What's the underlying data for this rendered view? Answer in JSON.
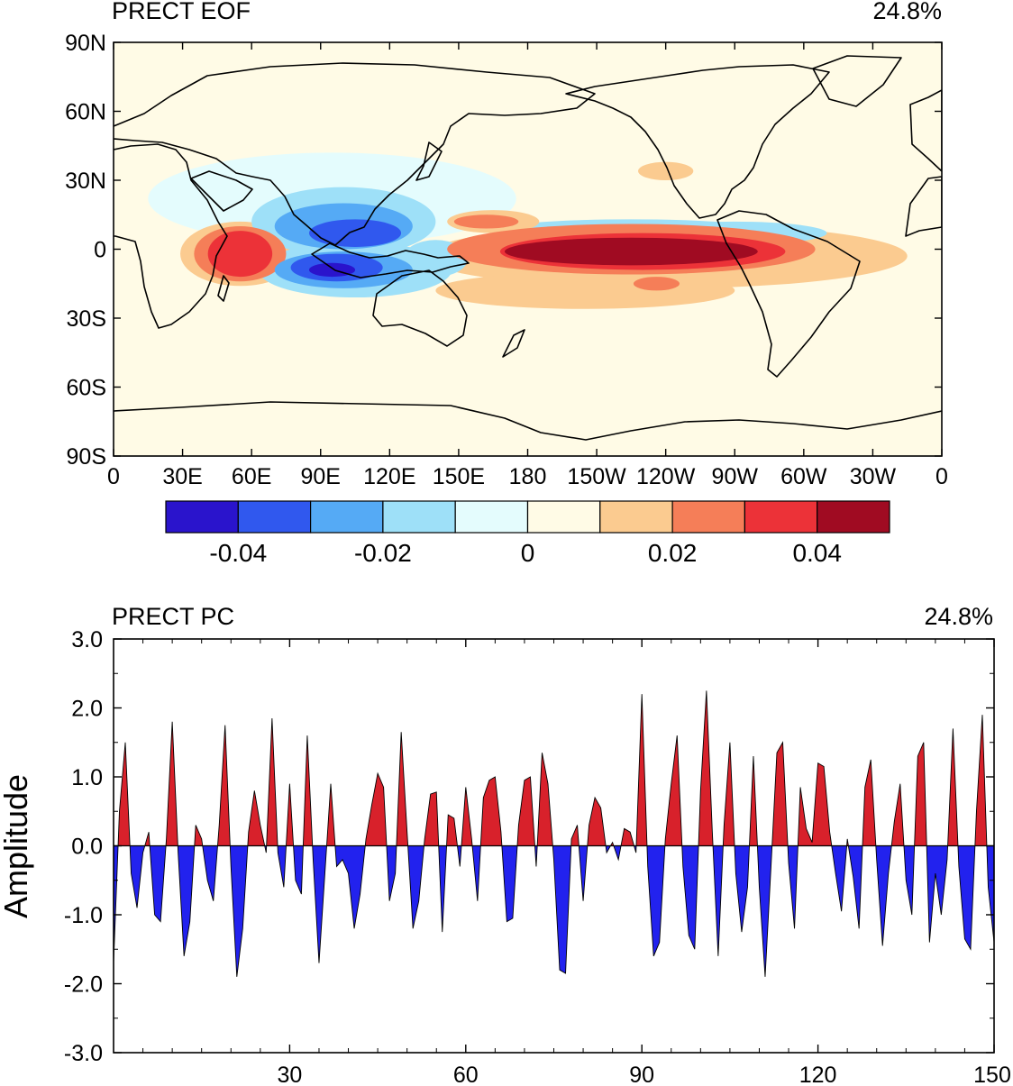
{
  "colors": {
    "neg_fill": "#2222ee",
    "pos_fill": "#d8212b",
    "outline": "#000000"
  },
  "chart_data": [
    {
      "type": "heatmap",
      "title": "PRECT EOF",
      "variance": "24.8%",
      "x_ticks": [
        "0",
        "30E",
        "60E",
        "90E",
        "120E",
        "150E",
        "180",
        "150W",
        "120W",
        "90W",
        "60W",
        "30W",
        "0"
      ],
      "y_ticks": [
        "90N",
        "60N",
        "30N",
        "0",
        "30S",
        "60S",
        "90S"
      ],
      "xlim": [
        0,
        360
      ],
      "ylim": [
        -90,
        90
      ],
      "colorbar": {
        "levels": [
          -0.05,
          -0.04,
          -0.03,
          -0.02,
          -0.01,
          0,
          0.01,
          0.02,
          0.03,
          0.04,
          0.05
        ],
        "colors": [
          "#2a14cc",
          "#3058ee",
          "#55aaf5",
          "#9ee0f8",
          "#e4fcfd",
          "#fffbe6",
          "#fbcb90",
          "#f57e58",
          "#ec3238",
          "#a00b22"
        ],
        "labels": [
          "-0.04",
          "-0.02",
          "0",
          "0.02",
          "0.04"
        ],
        "label_values": [
          -0.04,
          -0.02,
          0,
          0.02,
          0.04
        ]
      },
      "features": [
        {
          "lon": 225,
          "lat": -1,
          "rx": 55,
          "ry": 6,
          "value": 0.045
        },
        {
          "lon": 230,
          "lat": -1,
          "rx": 62,
          "ry": 8,
          "value": 0.035
        },
        {
          "lon": 225,
          "lat": 0,
          "rx": 80,
          "ry": 11,
          "value": 0.025
        },
        {
          "lon": 240,
          "lat": -3,
          "rx": 105,
          "ry": 14,
          "value": 0.015
        },
        {
          "lon": 225,
          "lat": 9,
          "rx": 55,
          "ry": 4,
          "value": -0.015
        },
        {
          "lon": 270,
          "lat": 7,
          "rx": 40,
          "ry": 5,
          "value": -0.015
        },
        {
          "lon": 205,
          "lat": -18,
          "rx": 65,
          "ry": 8,
          "value": 0.015
        },
        {
          "lon": 236,
          "lat": -15,
          "rx": 10,
          "ry": 3,
          "value": 0.025
        },
        {
          "lon": 162,
          "lat": 12,
          "rx": 14,
          "ry": 3,
          "value": 0.025
        },
        {
          "lon": 165,
          "lat": 12,
          "rx": 20,
          "ry": 5,
          "value": 0.015
        },
        {
          "lon": 240,
          "lat": 34,
          "rx": 12,
          "ry": 4,
          "value": 0.015
        },
        {
          "lon": 55,
          "lat": -2,
          "rx": 14,
          "ry": 10,
          "value": 0.035
        },
        {
          "lon": 55,
          "lat": -2,
          "rx": 20,
          "ry": 12,
          "value": 0.025
        },
        {
          "lon": 55,
          "lat": -2,
          "rx": 26,
          "ry": 14,
          "value": 0.015
        },
        {
          "lon": 95,
          "lat": -9,
          "rx": 10,
          "ry": 3,
          "value": -0.045
        },
        {
          "lon": 97,
          "lat": -8,
          "rx": 20,
          "ry": 6,
          "value": -0.035
        },
        {
          "lon": 100,
          "lat": -9,
          "rx": 30,
          "ry": 8,
          "value": -0.025
        },
        {
          "lon": 105,
          "lat": -9,
          "rx": 42,
          "ry": 12,
          "value": -0.015
        },
        {
          "lon": 105,
          "lat": 7,
          "rx": 20,
          "ry": 6,
          "value": -0.035
        },
        {
          "lon": 100,
          "lat": 10,
          "rx": 30,
          "ry": 10,
          "value": -0.025
        },
        {
          "lon": 100,
          "lat": 12,
          "rx": 40,
          "ry": 15,
          "value": -0.015
        },
        {
          "lon": 140,
          "lat": -4,
          "rx": 14,
          "ry": 8,
          "value": -0.015
        },
        {
          "lon": 95,
          "lat": 22,
          "rx": 80,
          "ry": 20,
          "value": -0.005
        }
      ]
    },
    {
      "type": "area",
      "title": "PRECT PC",
      "variance": "24.8%",
      "ylabel": "Amplitude",
      "xlim": [
        0,
        150
      ],
      "ylim": [
        -3.0,
        3.0
      ],
      "x_ticks": [
        30,
        60,
        90,
        120,
        150
      ],
      "y_ticks": [
        "3.0",
        "2.0",
        "1.0",
        "0.0",
        "-1.0",
        "-2.0",
        "-3.0"
      ],
      "y_tick_values": [
        3,
        2,
        1,
        0,
        -1,
        -2,
        -3
      ],
      "x": [
        0,
        1,
        2,
        3,
        4,
        5,
        6,
        7,
        8,
        9,
        10,
        11,
        12,
        13,
        14,
        15,
        16,
        17,
        18,
        19,
        20,
        21,
        22,
        23,
        24,
        25,
        26,
        27,
        28,
        29,
        30,
        31,
        32,
        33,
        34,
        35,
        36,
        37,
        38,
        39,
        40,
        41,
        42,
        43,
        44,
        45,
        46,
        47,
        48,
        49,
        50,
        51,
        52,
        53,
        54,
        55,
        56,
        57,
        58,
        59,
        60,
        61,
        62,
        63,
        64,
        65,
        66,
        67,
        68,
        69,
        70,
        71,
        72,
        73,
        74,
        75,
        76,
        77,
        78,
        79,
        80,
        81,
        82,
        83,
        84,
        85,
        86,
        87,
        88,
        89,
        90,
        91,
        92,
        93,
        94,
        95,
        96,
        97,
        98,
        99,
        100,
        101,
        102,
        103,
        104,
        105,
        106,
        107,
        108,
        109,
        110,
        111,
        112,
        113,
        114,
        115,
        116,
        117,
        118,
        119,
        120,
        121,
        122,
        123,
        124,
        125,
        126,
        127,
        128,
        129,
        130,
        131,
        132,
        133,
        134,
        135,
        136,
        137,
        138,
        139,
        140,
        141,
        142,
        143,
        144,
        145,
        146,
        147,
        148,
        149,
        150
      ],
      "values": [
        -1.7,
        0.5,
        1.5,
        -0.4,
        -0.9,
        -0.1,
        0.2,
        -1.0,
        -1.1,
        0.1,
        1.8,
        -0.1,
        -1.6,
        -1.1,
        0.3,
        0.1,
        -0.5,
        -0.8,
        0.3,
        1.75,
        -0.3,
        -1.9,
        -1.2,
        0.2,
        0.8,
        0.3,
        -0.1,
        1.85,
        -0.1,
        -0.6,
        0.9,
        -0.5,
        -0.7,
        1.6,
        -0.2,
        -1.7,
        -0.4,
        0.9,
        -0.3,
        -0.2,
        -0.4,
        -1.2,
        -0.7,
        0.1,
        0.6,
        1.05,
        0.85,
        -0.8,
        -0.4,
        1.65,
        0.2,
        -1.2,
        -0.8,
        0.1,
        0.75,
        0.78,
        -1.25,
        0.45,
        0.4,
        -0.3,
        0.85,
        0.1,
        -0.8,
        0.7,
        0.95,
        1.0,
        0.2,
        -1.1,
        -1.05,
        0.3,
        0.95,
        1.0,
        -0.3,
        1.35,
        0.9,
        -0.2,
        -1.8,
        -1.85,
        0.1,
        0.3,
        -0.8,
        0.3,
        0.7,
        0.55,
        -0.1,
        0.05,
        -0.2,
        0.25,
        0.2,
        -0.1,
        2.2,
        -0.3,
        -1.6,
        -1.4,
        0.1,
        0.9,
        1.6,
        -0.3,
        -1.3,
        -1.5,
        0.8,
        2.25,
        0.2,
        -1.6,
        0.3,
        1.5,
        -0.4,
        -1.25,
        -0.6,
        1.3,
        -0.6,
        -1.9,
        -0.3,
        1.35,
        1.5,
        -0.25,
        -1.2,
        0.85,
        0.25,
        0.05,
        1.2,
        1.15,
        0.2,
        -0.4,
        -0.95,
        0.1,
        -0.45,
        -1.2,
        0.85,
        1.25,
        -0.2,
        -1.45,
        -0.4,
        0.35,
        0.9,
        -0.5,
        -1.0,
        1.3,
        1.5,
        -1.4,
        -0.4,
        -1.0,
        -0.2,
        1.7,
        -0.3,
        -1.35,
        -1.5,
        0.5,
        1.9,
        -0.6,
        -1.4
      ]
    }
  ]
}
